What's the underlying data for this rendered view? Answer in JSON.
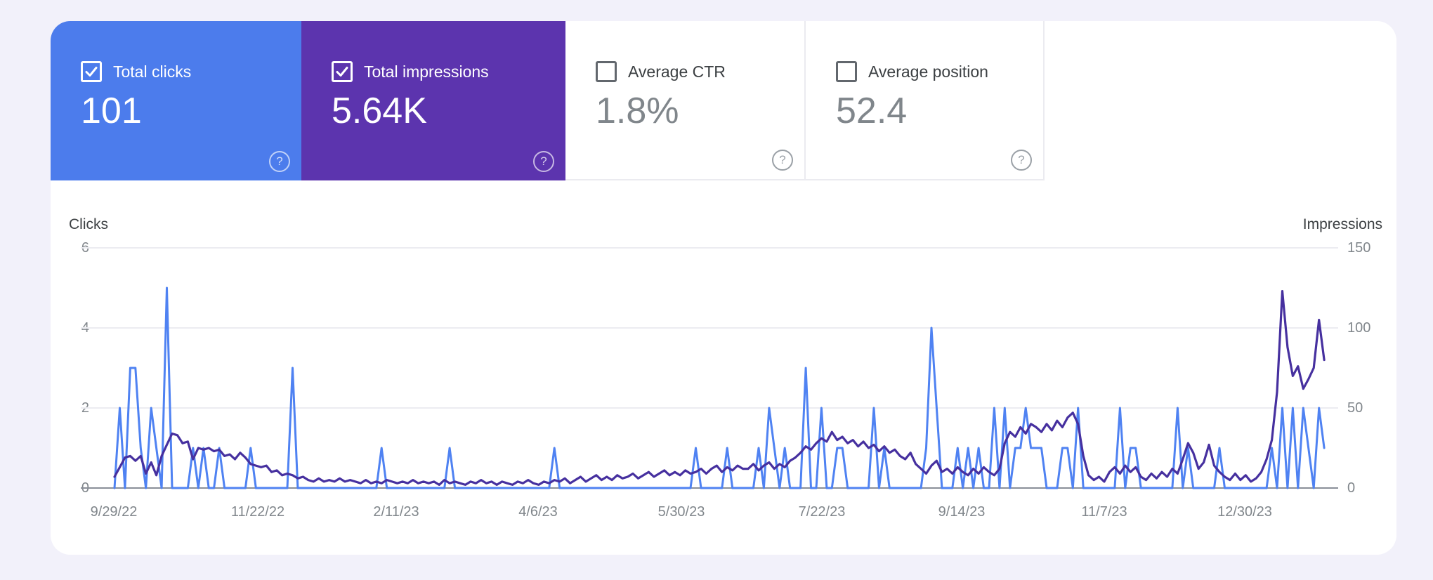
{
  "colors": {
    "page_bg": "#f2f1fa",
    "panel_bg": "#ffffff",
    "clicks_accent": "#4c7cec",
    "impressions_accent": "#5c34ae",
    "clicks_line": "#4f82f2",
    "impressions_line": "#46309f"
  },
  "icons": {
    "help_glyph": "?"
  },
  "cards": [
    {
      "label": "Total clicks",
      "value": "101",
      "checked": true,
      "bg": "#4c7cec"
    },
    {
      "label": "Total impressions",
      "value": "5.64K",
      "checked": true,
      "bg": "#5c34ae"
    },
    {
      "label": "Average CTR",
      "value": "1.8%",
      "checked": false,
      "bg": "#ffffff"
    },
    {
      "label": "Average position",
      "value": "52.4",
      "checked": false,
      "bg": "#ffffff"
    }
  ],
  "chart_data": {
    "type": "line",
    "left_axis": {
      "label": "Clicks",
      "range": [
        0,
        6
      ],
      "ticks": [
        "6",
        "4",
        "2",
        "0"
      ]
    },
    "right_axis": {
      "label": "Impressions",
      "range": [
        0,
        150
      ],
      "ticks": [
        "150",
        "100",
        "50",
        "0"
      ]
    },
    "x_tick_labels": [
      "9/29/22",
      "11/22/22",
      "2/11/23",
      "4/6/23",
      "5/30/23",
      "7/22/23",
      "9/14/23",
      "11/7/23",
      "12/30/23"
    ],
    "grid": "horizontal",
    "legend_position": "none",
    "series": [
      {
        "name": "Clicks",
        "axis": "left",
        "color": "#4f82f2",
        "values": [
          0,
          2,
          0,
          3,
          3,
          1,
          0,
          2,
          1,
          0,
          5,
          0,
          0,
          0,
          0,
          1,
          0,
          1,
          0,
          0,
          1,
          0,
          0,
          0,
          0,
          0,
          1,
          0,
          0,
          0,
          0,
          0,
          0,
          0,
          3,
          0,
          0,
          0,
          0,
          0,
          0,
          0,
          0,
          0,
          0,
          0,
          0,
          0,
          0,
          0,
          0,
          1,
          0,
          0,
          0,
          0,
          0,
          0,
          0,
          0,
          0,
          0,
          0,
          0,
          1,
          0,
          0,
          0,
          0,
          0,
          0,
          0,
          0,
          0,
          0,
          0,
          0,
          0,
          0,
          0,
          0,
          0,
          0,
          0,
          1,
          0,
          0,
          0,
          0,
          0,
          0,
          0,
          0,
          0,
          0,
          0,
          0,
          0,
          0,
          0,
          0,
          0,
          0,
          0,
          0,
          0,
          0,
          0,
          0,
          0,
          0,
          1,
          0,
          0,
          0,
          0,
          0,
          1,
          0,
          0,
          0,
          0,
          0,
          1,
          0,
          2,
          1,
          0,
          1,
          0,
          0,
          0,
          3,
          0,
          0,
          2,
          0,
          0,
          1,
          1,
          0,
          0,
          0,
          0,
          0,
          2,
          0,
          1,
          0,
          0,
          0,
          0,
          0,
          0,
          0,
          1,
          4,
          2,
          0,
          0,
          0,
          1,
          0,
          1,
          0,
          1,
          0,
          0,
          2,
          0,
          2,
          0,
          1,
          1,
          2,
          1,
          1,
          1,
          0,
          0,
          0,
          1,
          1,
          0,
          2,
          0,
          0,
          0,
          0,
          0,
          0,
          0,
          2,
          0,
          1,
          1,
          0,
          0,
          0,
          0,
          0,
          0,
          0,
          2,
          0,
          1,
          0,
          0,
          0,
          0,
          0,
          1,
          0,
          0,
          0,
          0,
          0,
          0,
          0,
          0,
          0,
          1,
          0,
          2,
          0,
          2,
          0,
          2,
          1,
          0,
          2,
          1
        ]
      },
      {
        "name": "Impressions",
        "axis": "right",
        "color": "#46309f",
        "values": [
          7,
          13,
          19,
          20,
          17,
          20,
          9,
          16,
          8,
          20,
          27,
          34,
          33,
          28,
          29,
          18,
          25,
          24,
          25,
          23,
          24,
          20,
          21,
          18,
          22,
          19,
          15,
          14,
          13,
          14,
          10,
          11,
          8,
          9,
          8,
          6,
          7,
          5,
          4,
          6,
          4,
          5,
          4,
          6,
          4,
          5,
          4,
          3,
          5,
          3,
          4,
          3,
          5,
          4,
          3,
          4,
          3,
          5,
          3,
          4,
          3,
          4,
          2,
          5,
          3,
          4,
          3,
          2,
          4,
          3,
          5,
          3,
          4,
          2,
          4,
          3,
          2,
          4,
          3,
          5,
          3,
          2,
          4,
          3,
          5,
          4,
          6,
          3,
          5,
          7,
          4,
          6,
          8,
          5,
          7,
          5,
          8,
          6,
          7,
          9,
          6,
          8,
          10,
          7,
          9,
          11,
          8,
          10,
          8,
          11,
          9,
          10,
          12,
          9,
          12,
          14,
          10,
          13,
          11,
          14,
          12,
          12,
          15,
          11,
          14,
          16,
          12,
          15,
          13,
          17,
          19,
          22,
          26,
          24,
          28,
          31,
          29,
          35,
          30,
          32,
          28,
          30,
          26,
          29,
          25,
          27,
          23,
          26,
          22,
          24,
          20,
          18,
          22,
          15,
          12,
          9,
          14,
          17,
          10,
          12,
          9,
          13,
          10,
          8,
          12,
          9,
          13,
          10,
          8,
          12,
          28,
          35,
          32,
          38,
          34,
          40,
          38,
          35,
          40,
          36,
          42,
          38,
          44,
          47,
          40,
          20,
          8,
          5,
          7,
          4,
          10,
          13,
          9,
          14,
          10,
          13,
          7,
          5,
          9,
          6,
          10,
          7,
          12,
          9,
          18,
          28,
          22,
          12,
          16,
          27,
          14,
          10,
          7,
          5,
          9,
          5,
          8,
          4,
          6,
          10,
          18,
          30,
          60,
          123,
          88,
          70,
          76,
          62,
          68,
          75,
          105,
          80
        ]
      }
    ]
  }
}
